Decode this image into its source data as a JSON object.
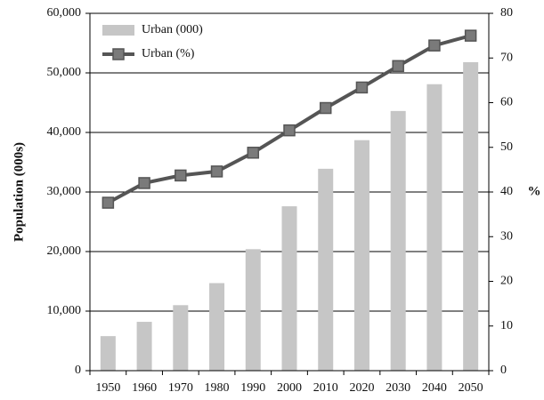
{
  "chart_data": {
    "type": "bar_line",
    "categories": [
      "1950",
      "1960",
      "1970",
      "1980",
      "1990",
      "2000",
      "2010",
      "2020",
      "2030",
      "2040",
      "2050"
    ],
    "y_label": "Population (000s)",
    "y2_label": "%",
    "ylim": [
      0,
      60000
    ],
    "yticks": [
      0,
      {
        "value": 10000,
        "label": "10,000"
      },
      {
        "value": 20000,
        "label": "20,000"
      },
      {
        "value": 30000,
        "label": "30,000"
      },
      {
        "value": 40000,
        "label": "40,000"
      },
      {
        "value": 50000,
        "label": "50,000"
      },
      {
        "value": 60000,
        "label": "60,000"
      }
    ],
    "y2lim": [
      0,
      80
    ],
    "y2ticks": [
      0,
      10,
      20,
      30,
      40,
      50,
      60,
      70,
      80
    ],
    "grid": true,
    "legend": "top-left",
    "series": [
      {
        "name": "Urban (000)",
        "type": "bar",
        "color": "#c6c6c6",
        "values": [
          5800,
          8200,
          11000,
          14700,
          20400,
          27600,
          33900,
          38700,
          43600,
          48100,
          51800
        ]
      },
      {
        "name": "Urban (%)",
        "type": "line",
        "axis": "y2",
        "color": "#555555",
        "values": [
          37.6,
          42,
          43.7,
          44.6,
          48.8,
          53.8,
          58.8,
          63.4,
          68.2,
          72.8,
          75
        ]
      }
    ]
  }
}
